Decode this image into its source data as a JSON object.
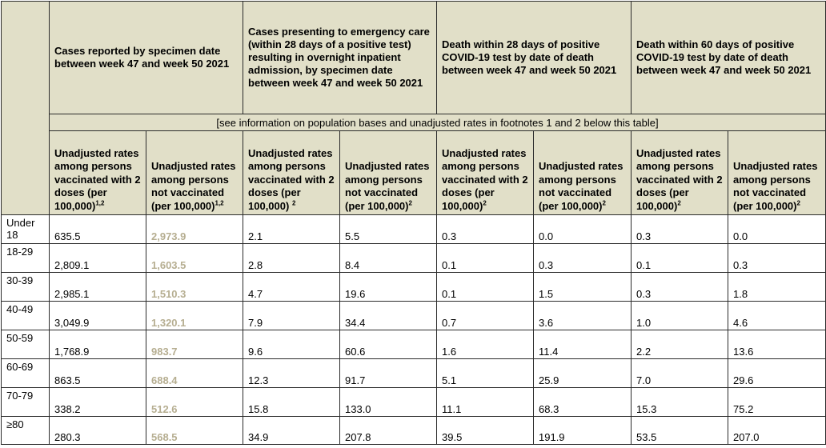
{
  "headers": {
    "cases": "Cases reported by specimen date between week 47 and week 50 2021",
    "emergency": "Cases presenting to emergency care (within 28 days of a positive test) resulting in overnight inpatient admission, by specimen date between week 47 and week 50 2021",
    "death28": "Death within 28 days of positive COVID-19 test by date of death between week 47 and week 50 2021",
    "death60": "Death within 60 days of positive COVID-19 test by date of death between week 47 and week 50 2021"
  },
  "note": "[see information on population bases and unadjusted rates in footnotes 1 and 2 below this table]",
  "subheaders": {
    "vax": "Unadjusted rates among persons vaccinated with 2 doses (per 100,000)",
    "novax": "Unadjusted rates among persons not vaccinated (per 100,000)",
    "sup12": "1,2",
    "sup2": "2"
  },
  "rows": [
    {
      "age": "Under 18",
      "values": [
        "635.5",
        "2,973.9",
        "2.1",
        "5.5",
        "0.3",
        "0.0",
        "0.3",
        "0.0"
      ]
    },
    {
      "age": "18-29",
      "values": [
        "2,809.1",
        "1,603.5",
        "2.8",
        "8.4",
        "0.1",
        "0.3",
        "0.1",
        "0.3"
      ]
    },
    {
      "age": "30-39",
      "values": [
        "2,985.1",
        "1,510.3",
        "4.7",
        "19.6",
        "0.1",
        "1.5",
        "0.3",
        "1.8"
      ]
    },
    {
      "age": "40-49",
      "values": [
        "3,049.9",
        "1,320.1",
        "7.9",
        "34.4",
        "0.7",
        "3.6",
        "1.0",
        "4.6"
      ]
    },
    {
      "age": "50-59",
      "values": [
        "1,768.9",
        "983.7",
        "9.6",
        "60.6",
        "1.6",
        "11.4",
        "2.2",
        "13.6"
      ]
    },
    {
      "age": "60-69",
      "values": [
        "863.5",
        "688.4",
        "12.3",
        "91.7",
        "5.1",
        "25.9",
        "7.0",
        "29.6"
      ]
    },
    {
      "age": "70-79",
      "values": [
        "338.2",
        "512.6",
        "15.8",
        "133.0",
        "11.1",
        "68.3",
        "15.3",
        "75.2"
      ]
    },
    {
      "age": "≥80",
      "values": [
        "280.3",
        "568.5",
        "34.9",
        "207.8",
        "39.5",
        "191.9",
        "53.5",
        "207.0"
      ]
    }
  ]
}
